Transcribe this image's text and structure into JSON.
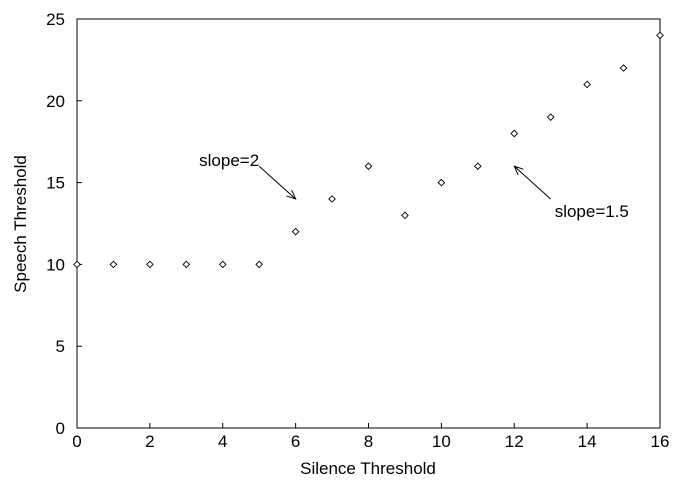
{
  "chart_data": {
    "type": "scatter",
    "title": "",
    "xlabel": "Silence Threshold",
    "ylabel": "Speech Threshold",
    "xlim": [
      0,
      16
    ],
    "ylim": [
      0,
      25
    ],
    "xticks": [
      0,
      2,
      4,
      6,
      8,
      10,
      12,
      14,
      16
    ],
    "yticks": [
      0,
      5,
      10,
      15,
      20,
      25
    ],
    "grid": false,
    "marker": "diamond",
    "series": [
      {
        "x": [
          0,
          1,
          2,
          3,
          4,
          5,
          6,
          7,
          8,
          9,
          10,
          11,
          12,
          13,
          14,
          15,
          16
        ],
        "y": [
          10,
          10,
          10,
          10,
          10,
          10,
          12,
          14,
          16,
          13,
          15,
          16,
          18,
          19,
          21,
          22,
          24
        ]
      }
    ],
    "annotations": [
      {
        "text": "slope=2",
        "text_at": [
          5.0,
          16.0
        ],
        "arrow_to": [
          6.0,
          14.0
        ]
      },
      {
        "text": "slope=1.5",
        "text_at": [
          13.0,
          14.0
        ],
        "arrow_to": [
          12.0,
          16.0
        ]
      }
    ],
    "colors": {
      "marker_fill": "#ffffff",
      "marker_stroke": "#000000",
      "axis": "#000000"
    }
  }
}
